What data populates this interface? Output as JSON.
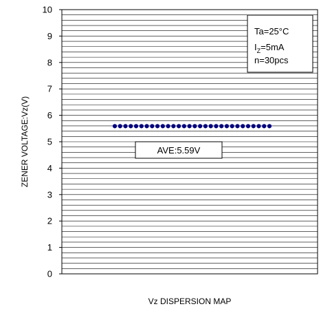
{
  "chart_data": {
    "type": "scatter",
    "title": "",
    "xlabel": "Vz DISPERSION MAP",
    "ylabel": "ZENER VOLTAGE:Vz(V)",
    "ylim": [
      0,
      10
    ],
    "yticks": [
      "0",
      "1",
      "2",
      "3",
      "4",
      "5",
      "6",
      "7",
      "8",
      "9",
      "10"
    ],
    "grid": true,
    "series": [
      {
        "values": [
          5.59,
          5.59,
          5.59,
          5.59,
          5.59,
          5.59,
          5.59,
          5.59,
          5.59,
          5.59,
          5.59,
          5.59,
          5.59,
          5.59,
          5.59,
          5.59,
          5.59,
          5.59,
          5.59,
          5.59,
          5.59,
          5.59,
          5.59,
          5.59,
          5.59,
          5.59,
          5.59,
          5.59,
          5.59,
          5.59
        ]
      }
    ],
    "annotation": {
      "text": "AVE:5.59V"
    },
    "conditions": {
      "ta": "Ta=25°C",
      "iz_main": "I",
      "iz_sub": "Z",
      "iz_rest": "=5mA",
      "n": "n=30pcs"
    }
  },
  "colors": {
    "point": "#000080",
    "grid": "#000000",
    "axis": "#000000"
  }
}
